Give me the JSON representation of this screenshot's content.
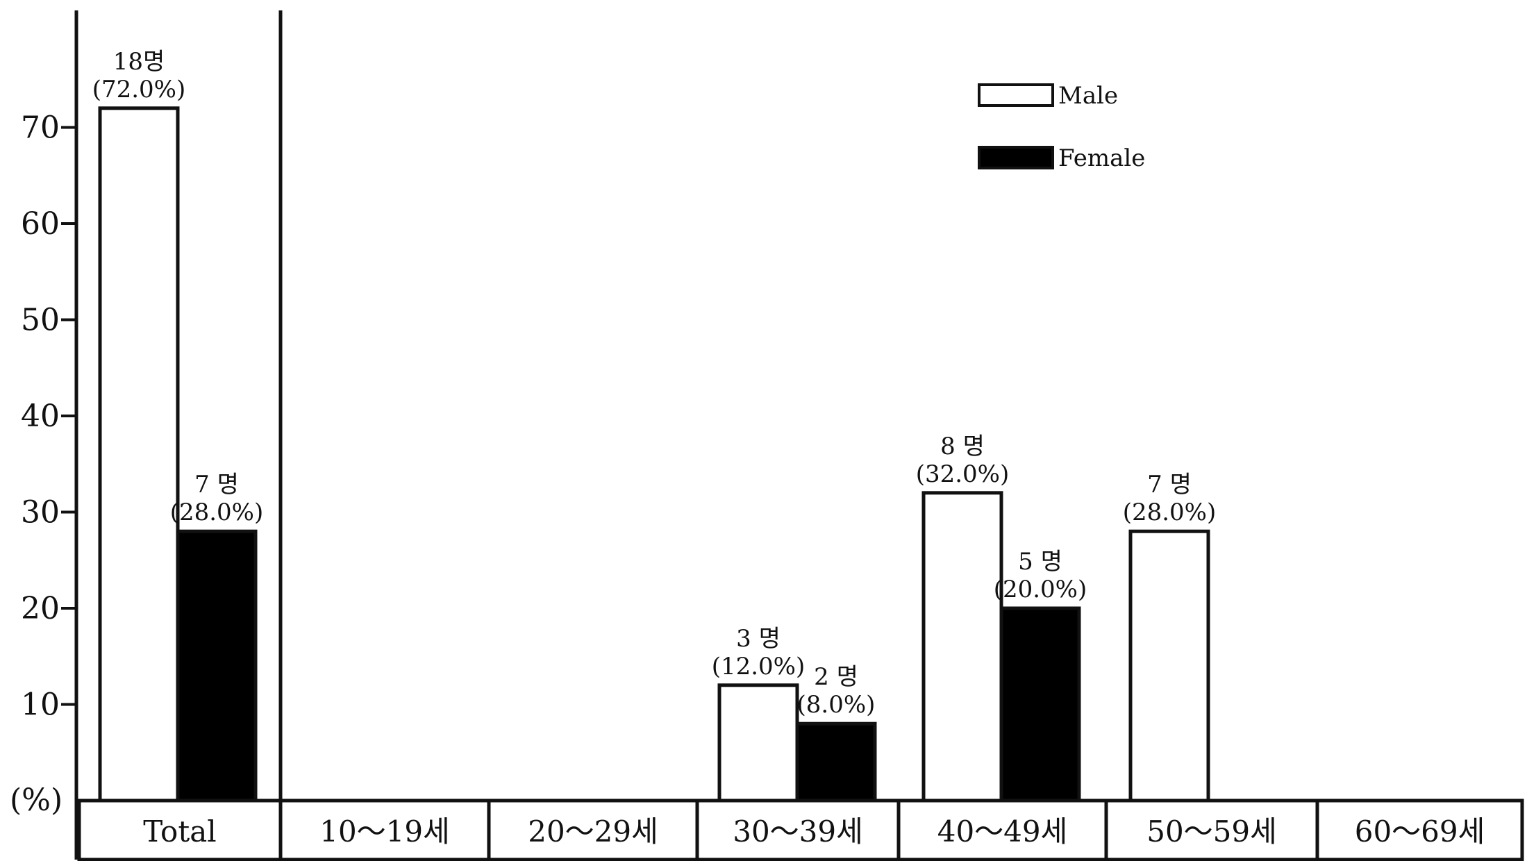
{
  "chart_data": {
    "type": "bar",
    "title": "",
    "xlabel": "",
    "ylabel": "(%)",
    "ylim": [
      0,
      72
    ],
    "yticks": [
      10,
      20,
      30,
      40,
      50,
      60,
      70
    ],
    "categories": [
      "Total",
      "10～19세",
      "20～29세",
      "30～39세",
      "40～49세",
      "50～59세",
      "60～69세"
    ],
    "series": [
      {
        "name": "Male",
        "color": "#ffffff",
        "values": [
          72.0,
          null,
          null,
          12.0,
          32.0,
          28.0,
          null
        ],
        "counts": [
          "18명",
          null,
          null,
          "3 명",
          "8 명",
          "7 명",
          null
        ],
        "percent_labels": [
          "(72.0%)",
          null,
          null,
          "(12.0%)",
          "(32.0%)",
          "(28.0%)",
          null
        ]
      },
      {
        "name": "Female",
        "color": "#000000",
        "values": [
          28.0,
          null,
          null,
          8.0,
          20.0,
          null,
          null
        ],
        "counts": [
          "7 명",
          null,
          null,
          "2 명",
          "5 명",
          null,
          null
        ],
        "percent_labels": [
          "(28.0%)",
          null,
          null,
          "(8.0%)",
          "(20.0%)",
          null,
          null
        ]
      }
    ],
    "legend": {
      "position": "top-right"
    },
    "grid": false
  }
}
